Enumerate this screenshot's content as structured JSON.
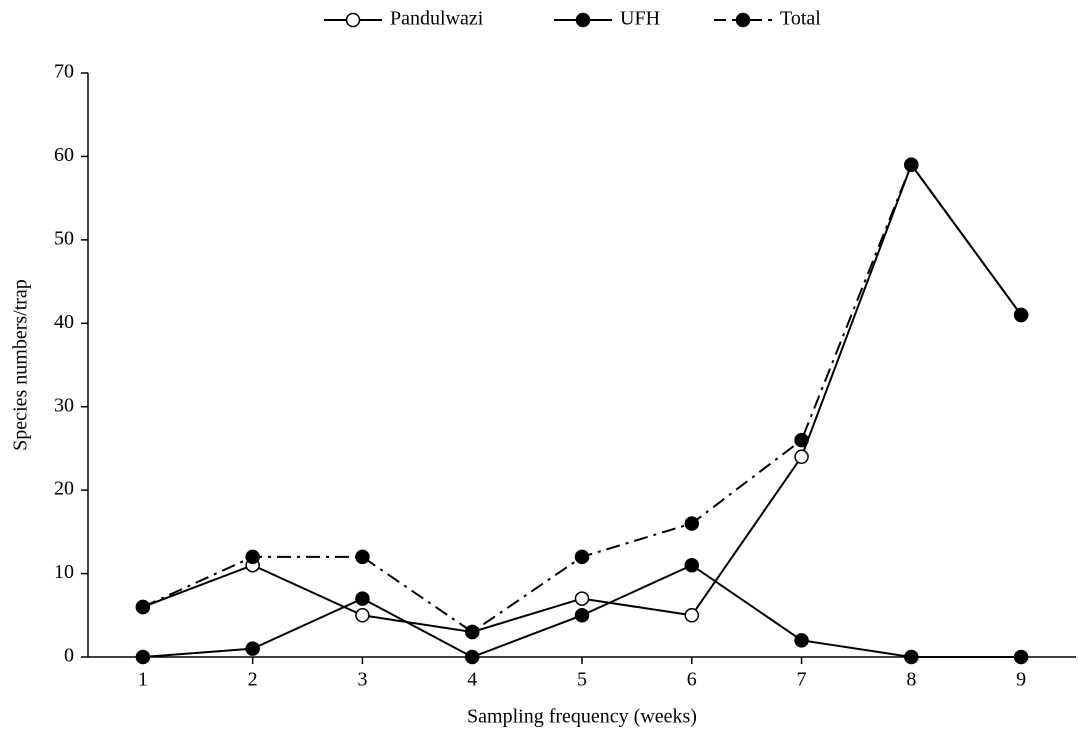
{
  "chart_data": {
    "type": "line",
    "x_label": "Sampling frequency (weeks)",
    "y_label": "Species numbers/trap",
    "x": [
      1,
      2,
      3,
      4,
      5,
      6,
      7,
      8,
      9
    ],
    "xlim": [
      0.5,
      9.5
    ],
    "xticks": [
      1,
      2,
      3,
      4,
      5,
      6,
      7,
      8,
      9
    ],
    "ylim": [
      0,
      70
    ],
    "yticks": [
      0,
      10,
      20,
      30,
      40,
      50,
      60,
      70
    ],
    "grid": false,
    "legend": "top",
    "series": [
      {
        "name": "Pandulwazi",
        "color": "#000000",
        "marker": "open",
        "dash": "solid",
        "values": [
          6,
          11,
          5,
          3,
          7,
          5,
          24,
          59,
          41
        ]
      },
      {
        "name": "UFH",
        "color": "#000000",
        "marker": "filled",
        "dash": "solid",
        "values": [
          0,
          1,
          7,
          0,
          5,
          11,
          2,
          0,
          0
        ]
      },
      {
        "name": "Total",
        "color": "#000000",
        "marker": "filled",
        "dash": "dashdot",
        "values": [
          6,
          12,
          12,
          3,
          12,
          16,
          26,
          59,
          41
        ]
      }
    ]
  }
}
